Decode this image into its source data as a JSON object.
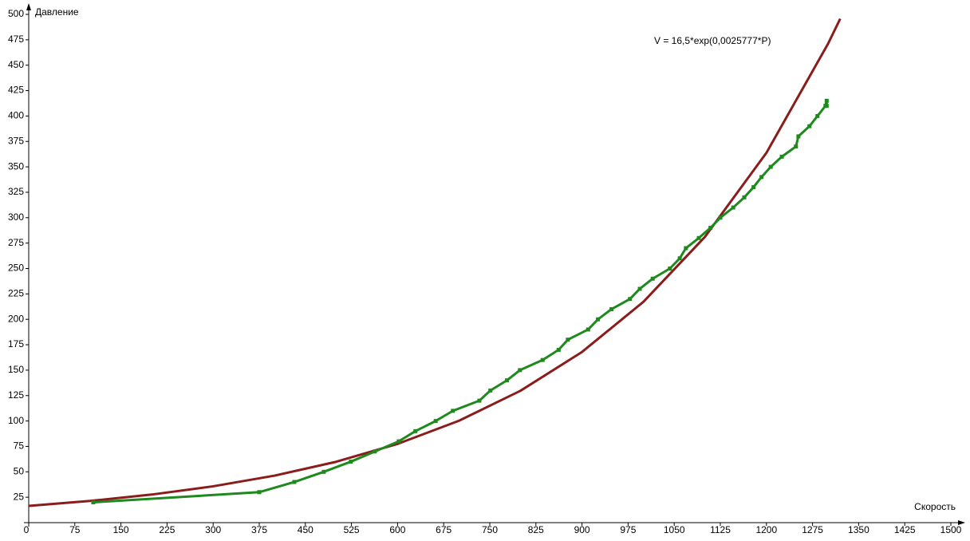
{
  "chart_data": {
    "type": "line",
    "xlabel": "Скорость",
    "ylabel": "Давление",
    "annotation": "V = 16,5*exp(0,0025777*P)",
    "xlim": [
      0,
      1500
    ],
    "ylim": [
      0,
      500
    ],
    "xticks": [
      0,
      75,
      150,
      225,
      300,
      375,
      450,
      525,
      600,
      675,
      750,
      825,
      900,
      975,
      1050,
      1125,
      1200,
      1275,
      1350,
      1425,
      1500
    ],
    "yticks": [
      25,
      50,
      75,
      100,
      125,
      150,
      175,
      200,
      225,
      250,
      275,
      300,
      325,
      350,
      375,
      400,
      425,
      450,
      475,
      500
    ],
    "grid": false,
    "series": [
      {
        "color": "#8b1c1c",
        "markers": false,
        "x": [
          0,
          100,
          200,
          300,
          400,
          500,
          600,
          700,
          800,
          900,
          1000,
          1100,
          1200,
          1300,
          1320
        ],
        "values": [
          16.5,
          21.35,
          27.63,
          35.76,
          46.27,
          59.87,
          77.48,
          100.26,
          129.75,
          167.9,
          217.27,
          281.16,
          363.84,
          470.83,
          495.7
        ]
      },
      {
        "color": "#1e8a1e",
        "markers": true,
        "x": [
          105,
          375,
          432,
          480,
          524,
          563,
          602,
          629,
          662,
          690,
          733,
          751,
          778,
          799,
          836,
          862,
          877,
          910,
          926,
          948,
          978,
          994,
          1015,
          1043,
          1059,
          1069,
          1090,
          1109,
          1125,
          1146,
          1164,
          1179,
          1192,
          1207,
          1225,
          1248,
          1252,
          1270,
          1283,
          1296,
          1298,
          1298
        ],
        "values": [
          20,
          30,
          40,
          50,
          60,
          70,
          80,
          90,
          100,
          110,
          120,
          130,
          140,
          150,
          160,
          170,
          180,
          190,
          200,
          210,
          220,
          230,
          240,
          250,
          260,
          270,
          280,
          290,
          300,
          310,
          320,
          330,
          340,
          350,
          360,
          370,
          380,
          390,
          400,
          410,
          415,
          410
        ]
      }
    ]
  }
}
